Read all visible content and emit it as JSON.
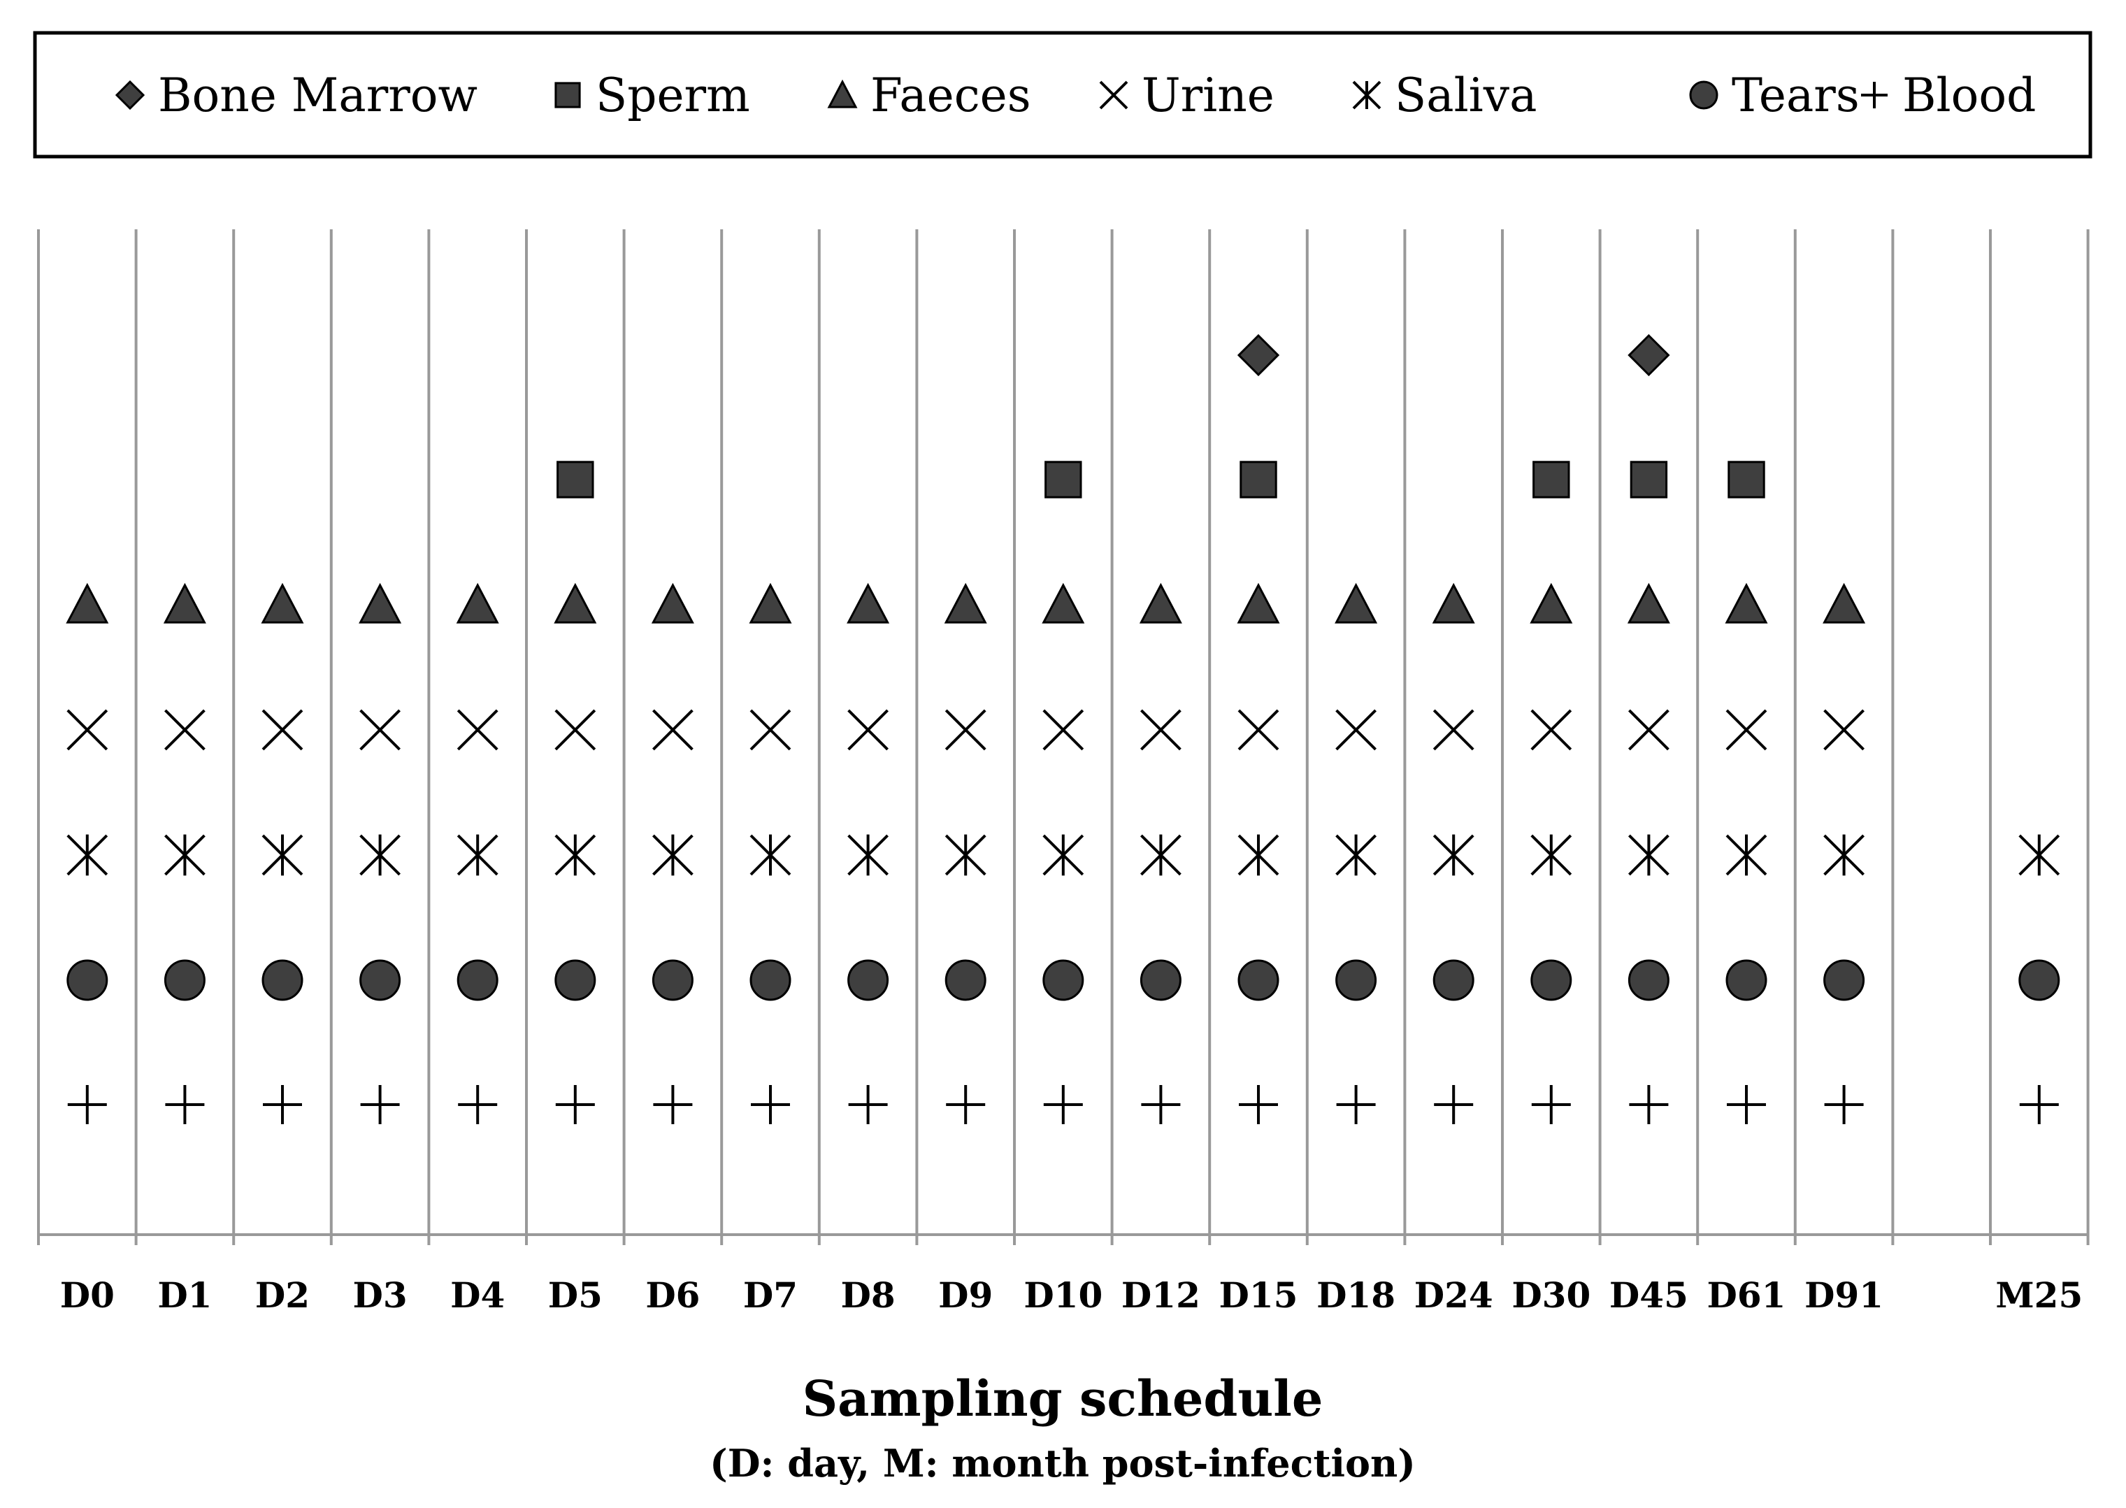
{
  "chart_data": {
    "type": "scatter",
    "title": "",
    "xlabel": "Sampling schedule",
    "xlabel_note": "(D: day, M: month post-infection)",
    "ylabel": "",
    "grid": "vertical",
    "legend_position": "top",
    "categories": [
      "D0",
      "D1",
      "D2",
      "D3",
      "D4",
      "D5",
      "D6",
      "D7",
      "D8",
      "D9",
      "D10",
      "D12",
      "D15",
      "D18",
      "D24",
      "D30",
      "D45",
      "D61",
      "D91",
      "",
      "M25"
    ],
    "series": [
      {
        "name": "Bone Marrow",
        "marker": "diamond",
        "sampled_at": [
          "D15",
          "D45"
        ]
      },
      {
        "name": "Sperm",
        "marker": "square",
        "sampled_at": [
          "D5",
          "D10",
          "D15",
          "D30",
          "D45",
          "D61"
        ]
      },
      {
        "name": "Faeces",
        "marker": "triangle",
        "sampled_at": [
          "D0",
          "D1",
          "D2",
          "D3",
          "D4",
          "D5",
          "D6",
          "D7",
          "D8",
          "D9",
          "D10",
          "D12",
          "D15",
          "D18",
          "D24",
          "D30",
          "D45",
          "D61",
          "D91"
        ]
      },
      {
        "name": "Urine",
        "marker": "x",
        "sampled_at": [
          "D0",
          "D1",
          "D2",
          "D3",
          "D4",
          "D5",
          "D6",
          "D7",
          "D8",
          "D9",
          "D10",
          "D12",
          "D15",
          "D18",
          "D24",
          "D30",
          "D45",
          "D61",
          "D91"
        ]
      },
      {
        "name": "Saliva",
        "marker": "asterisk",
        "sampled_at": [
          "D0",
          "D1",
          "D2",
          "D3",
          "D4",
          "D5",
          "D6",
          "D7",
          "D8",
          "D9",
          "D10",
          "D12",
          "D15",
          "D18",
          "D24",
          "D30",
          "D45",
          "D61",
          "D91",
          "M25"
        ]
      },
      {
        "name": "Tears",
        "marker": "circle",
        "sampled_at": [
          "D0",
          "D1",
          "D2",
          "D3",
          "D4",
          "D5",
          "D6",
          "D7",
          "D8",
          "D9",
          "D10",
          "D12",
          "D15",
          "D18",
          "D24",
          "D30",
          "D45",
          "D61",
          "D91",
          "M25"
        ]
      },
      {
        "name": "Blood",
        "marker": "plus",
        "sampled_at": [
          "D0",
          "D1",
          "D2",
          "D3",
          "D4",
          "D5",
          "D6",
          "D7",
          "D8",
          "D9",
          "D10",
          "D12",
          "D15",
          "D18",
          "D24",
          "D30",
          "D45",
          "D61",
          "D91",
          "M25"
        ]
      }
    ],
    "colors": {
      "marker_fill": "#3f3f3f",
      "marker_stroke": "#000000",
      "grid": "#999999"
    }
  }
}
